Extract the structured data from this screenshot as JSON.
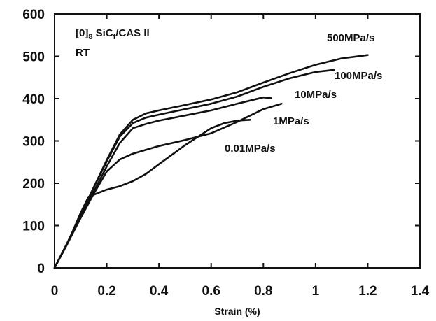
{
  "chart_data": {
    "type": "line",
    "xlabel": "Strain (%)",
    "ylabel": "",
    "xlim": [
      0,
      1.4
    ],
    "ylim": [
      0,
      600
    ],
    "grid": false,
    "x_ticks": [
      "0",
      "0.2",
      "0.4",
      "0.6",
      "0.8",
      "1",
      "1.2",
      "1.4"
    ],
    "y_ticks": [
      "0",
      "100",
      "200",
      "300",
      "400",
      "500",
      "600"
    ],
    "annotation": {
      "material_main": "[0]",
      "material_sub": "8",
      "material_mid": " SiC",
      "material_sub2": "f",
      "material_tail": "/CAS II",
      "temperature": "RT"
    },
    "series": [
      {
        "name": "500MPa/s",
        "x": [
          0,
          0.05,
          0.1,
          0.15,
          0.2,
          0.25,
          0.3,
          0.35,
          0.4,
          0.5,
          0.6,
          0.7,
          0.8,
          0.9,
          1.0,
          1.1,
          1.2
        ],
        "y": [
          0,
          60,
          125,
          190,
          255,
          315,
          350,
          365,
          372,
          385,
          398,
          415,
          438,
          460,
          480,
          495,
          503
        ]
      },
      {
        "name": "100MPa/s",
        "x": [
          0,
          0.05,
          0.1,
          0.15,
          0.2,
          0.25,
          0.3,
          0.35,
          0.4,
          0.5,
          0.6,
          0.7,
          0.8,
          0.9,
          1.0,
          1.07
        ],
        "y": [
          0,
          60,
          125,
          190,
          252,
          310,
          342,
          355,
          362,
          375,
          388,
          405,
          428,
          448,
          463,
          468
        ]
      },
      {
        "name": "10MPa/s",
        "x": [
          0,
          0.05,
          0.1,
          0.15,
          0.2,
          0.25,
          0.3,
          0.35,
          0.4,
          0.5,
          0.6,
          0.7,
          0.8,
          0.83
        ],
        "y": [
          0,
          58,
          120,
          180,
          240,
          295,
          330,
          340,
          348,
          360,
          372,
          388,
          403,
          401
        ]
      },
      {
        "name": "1MPa/s",
        "x": [
          0,
          0.05,
          0.1,
          0.15,
          0.2,
          0.25,
          0.3,
          0.4,
          0.5,
          0.6,
          0.7,
          0.8,
          0.87
        ],
        "y": [
          0,
          58,
          118,
          175,
          228,
          256,
          270,
          288,
          302,
          318,
          345,
          375,
          388
        ]
      },
      {
        "name": "0.01MPa/s",
        "x": [
          0,
          0.05,
          0.1,
          0.13,
          0.2,
          0.25,
          0.3,
          0.35,
          0.4,
          0.5,
          0.6,
          0.65,
          0.7,
          0.75
        ],
        "y": [
          0,
          58,
          130,
          168,
          185,
          193,
          205,
          222,
          245,
          290,
          330,
          342,
          348,
          350
        ]
      }
    ],
    "series_label_text": [
      "500MPa/s",
      "100MPa/s",
      "10MPa/s",
      "1MPa/s",
      "0.01MPa/s"
    ]
  }
}
